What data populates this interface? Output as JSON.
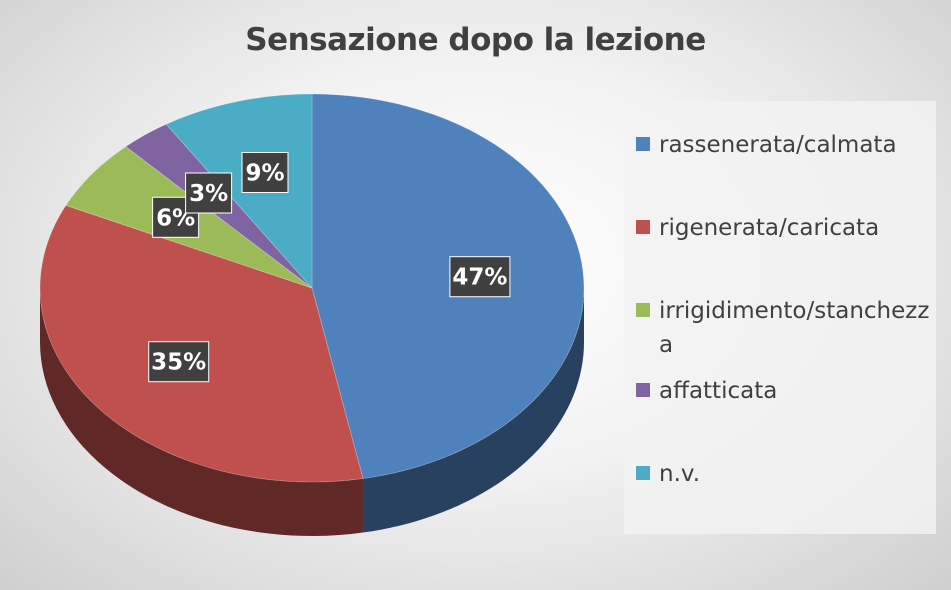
{
  "chart_data": {
    "type": "pie",
    "title": "Sensazione dopo la lezione",
    "categories": [
      "rassenerata/calmata",
      "rigenerata/caricata",
      "irrigidimento/stanchezza",
      "affatticata",
      "n.v."
    ],
    "values": [
      47,
      35,
      6,
      3,
      9
    ],
    "labels": [
      "47%",
      "35%",
      "6%",
      "3%",
      "9%"
    ],
    "colors": [
      "#4f81bd",
      "#c0504d",
      "#9bbb59",
      "#8064a2",
      "#4bacc6"
    ],
    "legend_position": "right",
    "style": "3d"
  }
}
